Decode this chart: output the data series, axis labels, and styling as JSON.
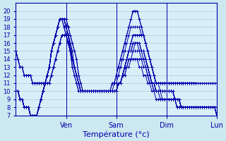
{
  "xlabel": "Température (°c)",
  "bg_color": "#cce8f0",
  "plot_bg_color": "#d8eef8",
  "line_color": "#0000aa",
  "grid_color": "#aaccdd",
  "ylim": [
    7,
    21
  ],
  "yticks": [
    7,
    8,
    9,
    10,
    11,
    12,
    13,
    14,
    15,
    16,
    17,
    18,
    19,
    20
  ],
  "x_day_labels": [
    "Ven",
    "Sam",
    "Dim",
    "Lun"
  ],
  "day_ticks": [
    24,
    48,
    72,
    96
  ],
  "xlim": [
    0,
    96
  ],
  "ensemble_members": [
    [
      10,
      10,
      9,
      9,
      8,
      8,
      8,
      7,
      7,
      7,
      7,
      8,
      9,
      10,
      11,
      12,
      13,
      15,
      16,
      17,
      18,
      19,
      19,
      19,
      19,
      18,
      17,
      16,
      15,
      14,
      12,
      11,
      10,
      10,
      10,
      10,
      10,
      10,
      10,
      10,
      10,
      10,
      10,
      10,
      10,
      10,
      10,
      10,
      10,
      11,
      11,
      12,
      13,
      14,
      15,
      16,
      17,
      17,
      17,
      17,
      17,
      17,
      16,
      15,
      14,
      13,
      12,
      11,
      11,
      11,
      11,
      11,
      11,
      11,
      11,
      11,
      11,
      11,
      11,
      11,
      11,
      11,
      11,
      11,
      11,
      11,
      11,
      11,
      11,
      11,
      11,
      11,
      11,
      11,
      11,
      11,
      11
    ],
    [
      10,
      10,
      9,
      9,
      8,
      8,
      8,
      7,
      7,
      7,
      7,
      8,
      9,
      10,
      11,
      12,
      13,
      15,
      16,
      17,
      18,
      19,
      19,
      19,
      19,
      18,
      17,
      16,
      15,
      14,
      12,
      11,
      10,
      10,
      10,
      10,
      10,
      10,
      10,
      10,
      10,
      10,
      10,
      10,
      10,
      10,
      10,
      10,
      10,
      11,
      11,
      12,
      13,
      14,
      15,
      16,
      17,
      17,
      17,
      17,
      17,
      17,
      16,
      15,
      14,
      13,
      12,
      11,
      11,
      10,
      10,
      10,
      10,
      10,
      10,
      10,
      9,
      9,
      9,
      8,
      8,
      8,
      8,
      8,
      8,
      8,
      8,
      8,
      8,
      8,
      8,
      8,
      8,
      8,
      8,
      8,
      8
    ],
    [
      10,
      10,
      9,
      9,
      8,
      8,
      8,
      7,
      7,
      7,
      7,
      8,
      9,
      10,
      11,
      12,
      13,
      15,
      16,
      17,
      18,
      19,
      19,
      19,
      18,
      17,
      16,
      15,
      13,
      12,
      11,
      10,
      10,
      10,
      10,
      10,
      10,
      10,
      10,
      10,
      10,
      10,
      10,
      10,
      10,
      10,
      10,
      10,
      10,
      11,
      11,
      12,
      13,
      14,
      15,
      15,
      16,
      16,
      16,
      16,
      15,
      15,
      14,
      13,
      12,
      11,
      11,
      10,
      10,
      10,
      10,
      10,
      10,
      10,
      10,
      10,
      9,
      9,
      9,
      8,
      8,
      8,
      8,
      8,
      8,
      8,
      8,
      8,
      8,
      8,
      8,
      8,
      8,
      8,
      8,
      8,
      8
    ],
    [
      10,
      10,
      9,
      9,
      8,
      8,
      8,
      7,
      7,
      7,
      7,
      8,
      9,
      10,
      11,
      12,
      13,
      15,
      16,
      17,
      18,
      19,
      19,
      19,
      18,
      17,
      16,
      14,
      13,
      12,
      11,
      10,
      10,
      10,
      10,
      10,
      10,
      10,
      10,
      10,
      10,
      10,
      10,
      10,
      10,
      10,
      10,
      10,
      10,
      11,
      11,
      12,
      13,
      14,
      15,
      15,
      16,
      16,
      16,
      16,
      15,
      15,
      14,
      13,
      12,
      11,
      11,
      10,
      10,
      10,
      10,
      10,
      10,
      10,
      10,
      10,
      9,
      9,
      9,
      8,
      8,
      8,
      8,
      8,
      8,
      8,
      8,
      8,
      8,
      8,
      8,
      8,
      8,
      8,
      8,
      8,
      7
    ],
    [
      10,
      10,
      9,
      9,
      8,
      8,
      8,
      7,
      7,
      7,
      7,
      8,
      9,
      10,
      11,
      12,
      13,
      15,
      16,
      17,
      18,
      19,
      19,
      19,
      18,
      17,
      16,
      14,
      13,
      12,
      11,
      10,
      10,
      10,
      10,
      10,
      10,
      10,
      10,
      10,
      10,
      10,
      10,
      10,
      10,
      10,
      10,
      10,
      10,
      11,
      11,
      12,
      13,
      14,
      15,
      15,
      15,
      16,
      16,
      15,
      15,
      15,
      14,
      13,
      12,
      11,
      11,
      10,
      10,
      10,
      10,
      10,
      10,
      10,
      10,
      10,
      9,
      9,
      9,
      8,
      8,
      8,
      8,
      8,
      8,
      8,
      8,
      8,
      8,
      8,
      8,
      8,
      8,
      8,
      8,
      8,
      7
    ],
    [
      10,
      10,
      9,
      9,
      8,
      8,
      8,
      7,
      7,
      7,
      7,
      8,
      9,
      10,
      11,
      12,
      13,
      15,
      16,
      17,
      18,
      19,
      19,
      19,
      18,
      17,
      15,
      14,
      13,
      12,
      11,
      10,
      10,
      10,
      10,
      10,
      10,
      10,
      10,
      10,
      10,
      10,
      10,
      10,
      10,
      10,
      10,
      10,
      10,
      11,
      11,
      12,
      13,
      14,
      15,
      15,
      15,
      15,
      15,
      15,
      15,
      14,
      14,
      13,
      12,
      11,
      11,
      10,
      10,
      10,
      10,
      10,
      10,
      10,
      10,
      10,
      9,
      9,
      9,
      8,
      8,
      8,
      8,
      8,
      8,
      8,
      8,
      8,
      8,
      8,
      8,
      8,
      8,
      8,
      8,
      8,
      7
    ],
    [
      10,
      10,
      9,
      9,
      8,
      8,
      8,
      7,
      7,
      7,
      7,
      8,
      9,
      10,
      11,
      12,
      13,
      15,
      16,
      17,
      18,
      19,
      19,
      19,
      18,
      17,
      15,
      14,
      13,
      12,
      11,
      10,
      10,
      10,
      10,
      10,
      10,
      10,
      10,
      10,
      10,
      10,
      10,
      10,
      10,
      10,
      10,
      10,
      10,
      11,
      11,
      12,
      13,
      13,
      14,
      14,
      15,
      15,
      15,
      15,
      14,
      14,
      13,
      12,
      11,
      11,
      10,
      10,
      10,
      10,
      9,
      9,
      9,
      9,
      9,
      9,
      9,
      8,
      8,
      8,
      8,
      8,
      8,
      8,
      8,
      8,
      8,
      8,
      8,
      8,
      8,
      8,
      8,
      8,
      8,
      8,
      7
    ],
    [
      10,
      10,
      9,
      9,
      8,
      8,
      8,
      7,
      7,
      7,
      7,
      8,
      9,
      10,
      11,
      12,
      13,
      15,
      16,
      17,
      18,
      19,
      19,
      18,
      17,
      16,
      15,
      13,
      12,
      11,
      10,
      10,
      10,
      10,
      10,
      10,
      10,
      10,
      10,
      10,
      10,
      10,
      10,
      10,
      10,
      10,
      10,
      10,
      10,
      11,
      11,
      12,
      12,
      13,
      14,
      14,
      14,
      14,
      14,
      14,
      14,
      13,
      13,
      12,
      11,
      11,
      10,
      10,
      10,
      9,
      9,
      9,
      9,
      9,
      9,
      9,
      9,
      8,
      8,
      8,
      8,
      8,
      8,
      8,
      8,
      8,
      8,
      8,
      8,
      8,
      8,
      8,
      8,
      8,
      8,
      8,
      7
    ],
    [
      10,
      10,
      9,
      9,
      8,
      8,
      8,
      7,
      7,
      7,
      7,
      8,
      9,
      10,
      11,
      12,
      13,
      15,
      16,
      17,
      18,
      19,
      19,
      18,
      17,
      16,
      15,
      13,
      12,
      11,
      10,
      10,
      10,
      10,
      10,
      10,
      10,
      10,
      10,
      10,
      10,
      10,
      10,
      10,
      10,
      10,
      10,
      10,
      10,
      11,
      11,
      12,
      12,
      13,
      13,
      14,
      14,
      14,
      14,
      13,
      13,
      12,
      12,
      11,
      11,
      10,
      10,
      9,
      9,
      9,
      9,
      9,
      9,
      9,
      9,
      9,
      9,
      8,
      8,
      8,
      8,
      8,
      8,
      8,
      8,
      8,
      8,
      8,
      8,
      8,
      8,
      8,
      8,
      8,
      8,
      8,
      7
    ],
    [
      15,
      14,
      13,
      13,
      12,
      12,
      12,
      12,
      11,
      11,
      11,
      11,
      11,
      11,
      11,
      11,
      11,
      12,
      13,
      14,
      15,
      16,
      17,
      17,
      17,
      16,
      15,
      14,
      13,
      12,
      11,
      10,
      10,
      10,
      10,
      10,
      10,
      10,
      10,
      10,
      10,
      10,
      10,
      10,
      10,
      10,
      10,
      11,
      11,
      12,
      13,
      14,
      15,
      16,
      17,
      18,
      18,
      18,
      18,
      18,
      17,
      17,
      16,
      15,
      14,
      13,
      12,
      11,
      11,
      11,
      11,
      11,
      11,
      11,
      11,
      11,
      11,
      11,
      11,
      11,
      11,
      11,
      11,
      11,
      11,
      11,
      11
    ],
    [
      15,
      14,
      13,
      13,
      12,
      12,
      12,
      12,
      11,
      11,
      11,
      11,
      11,
      11,
      11,
      11,
      11,
      12,
      13,
      14,
      15,
      16,
      17,
      17,
      17,
      16,
      15,
      14,
      13,
      12,
      11,
      10,
      10,
      10,
      10,
      10,
      10,
      10,
      10,
      10,
      10,
      10,
      10,
      10,
      10,
      10,
      11,
      11,
      12,
      13,
      14,
      15,
      16,
      17,
      18,
      19,
      20,
      20,
      20,
      19,
      18,
      17,
      16,
      15,
      14,
      13,
      12,
      11,
      11,
      11,
      11,
      11,
      11,
      11,
      11,
      11,
      11,
      11,
      11,
      11,
      11,
      11,
      11,
      11,
      11,
      11,
      11
    ],
    [
      15,
      14,
      13,
      13,
      12,
      12,
      12,
      12,
      11,
      11,
      11,
      11,
      11,
      11,
      11,
      11,
      11,
      12,
      13,
      14,
      15,
      16,
      17,
      17,
      17,
      16,
      15,
      14,
      13,
      12,
      11,
      10,
      10,
      10,
      10,
      10,
      10,
      10,
      10,
      10,
      10,
      10,
      10,
      10,
      10,
      10,
      11,
      11,
      12,
      13,
      14,
      15,
      16,
      17,
      18,
      19,
      20,
      20,
      20,
      19,
      18,
      17,
      16,
      15,
      14,
      13,
      12,
      11,
      11,
      11,
      11,
      11,
      11,
      11,
      11,
      11,
      11,
      11,
      11,
      11,
      11,
      11,
      11,
      11,
      11,
      11,
      11
    ]
  ]
}
